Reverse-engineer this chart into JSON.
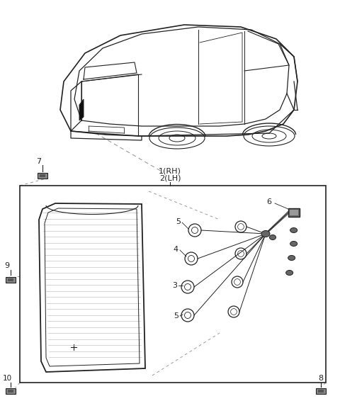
{
  "bg_color": "#ffffff",
  "line_color": "#222222",
  "dashed_color": "#999999",
  "gray_color": "#aaaaaa",
  "dark_color": "#444444"
}
